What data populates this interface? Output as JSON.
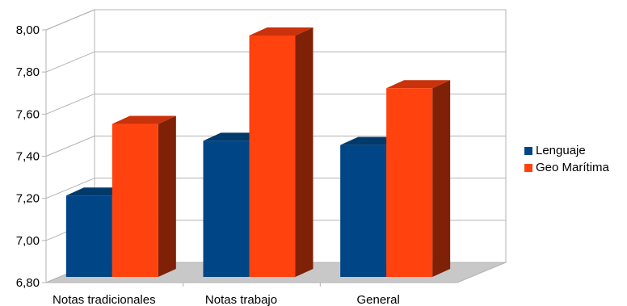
{
  "chart_data": {
    "type": "bar",
    "categories": [
      "Notas tradicionales",
      "Notas trabajo",
      "General"
    ],
    "series": [
      {
        "name": "Lenguaje",
        "values": [
          7.24,
          7.5,
          7.48
        ],
        "color": "#004586",
        "top_color": "#003a6b",
        "side_color": "#002a4e"
      },
      {
        "name": "Geo Marítima",
        "values": [
          7.58,
          8.0,
          7.75
        ],
        "color": "#ff420e",
        "top_color": "#c9320a",
        "side_color": "#7f2106"
      }
    ],
    "ylim": [
      6.8,
      8.0
    ],
    "yticks": [
      "6,80",
      "7,00",
      "7,20",
      "7,40",
      "7,60",
      "7,80",
      "8,00"
    ],
    "title": "",
    "xlabel": "",
    "ylabel": "",
    "grid": true,
    "legend_position": "right"
  }
}
